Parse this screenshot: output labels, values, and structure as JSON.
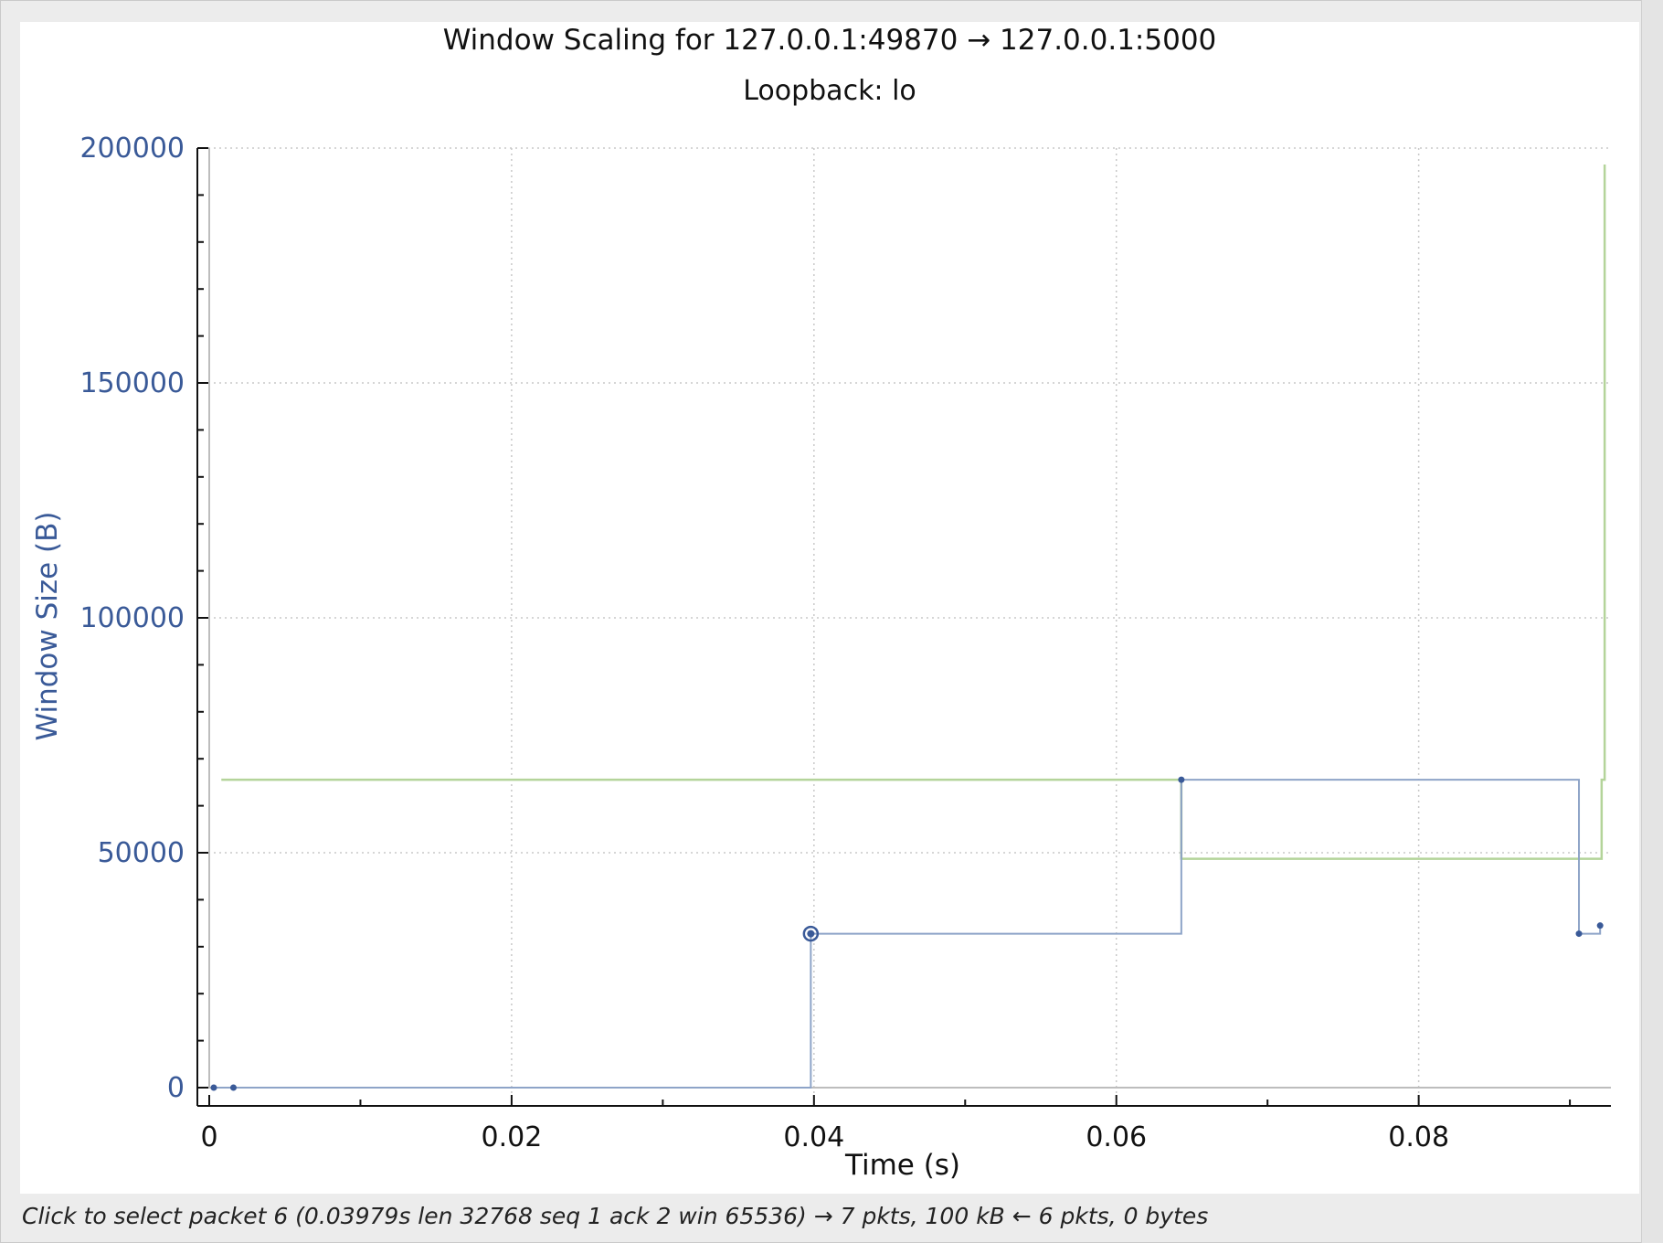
{
  "window": {
    "title": "Window Scaling for 127.0.0.1:49870 → 127.0.0.1:5000",
    "subtitle": "Loopback: lo"
  },
  "status_text": "Click to select packet 6 (0.03979s len 32768 seq 1 ack 2 win 65536) → 7 pkts, 100 kB ← 6 pkts, 0 bytes",
  "chart_data": {
    "type": "line",
    "title": "Window Scaling for 127.0.0.1:49870 → 127.0.0.1:5000",
    "subtitle": "Loopback: lo",
    "xlabel": "Time (s)",
    "ylabel": "Window Size (B)",
    "xlim": [
      0,
      0.0935
    ],
    "ylim": [
      0,
      200000
    ],
    "x_ticks": [
      "0",
      "0.02",
      "0.04",
      "0.06",
      "0.08"
    ],
    "x_tick_values": [
      0,
      0.02,
      0.04,
      0.06,
      0.08
    ],
    "y_ticks": [
      "0",
      "50000",
      "100000",
      "150000",
      "200000"
    ],
    "y_tick_values": [
      0,
      50000,
      100000,
      150000,
      200000
    ],
    "grid": true,
    "colors": {
      "bytes_in_flight": "#3a5a98",
      "bytes_in_flight_line": "#8ea4c8",
      "receive_window": "#b4d49a",
      "receive_window_dark": "#6f9a56",
      "grid": "#c8c8c8"
    },
    "series": [
      {
        "role": "bytes-in-flight",
        "style": "step",
        "points": [
          {
            "x": 0.0003,
            "y": 0
          },
          {
            "x": 0.0016,
            "y": 0
          },
          {
            "x": 0.03979,
            "y": 32768
          },
          {
            "x": 0.0643,
            "y": 65536
          },
          {
            "x": 0.0906,
            "y": 32768
          },
          {
            "x": 0.092,
            "y": 34500
          }
        ],
        "markers": [
          {
            "x": 0.0003,
            "y": 0
          },
          {
            "x": 0.0016,
            "y": 0
          },
          {
            "x": 0.0643,
            "y": 65536
          },
          {
            "x": 0.0906,
            "y": 32768
          },
          {
            "x": 0.092,
            "y": 34500
          }
        ],
        "selected": {
          "x": 0.03979,
          "y": 32768
        }
      },
      {
        "role": "receive-window",
        "style": "step",
        "points": [
          {
            "x": 0.0008,
            "y": 65536
          },
          {
            "x": 0.0643,
            "y": 48700
          },
          {
            "x": 0.0921,
            "y": 65536
          },
          {
            "x": 0.0923,
            "y": 196500
          }
        ]
      }
    ]
  }
}
